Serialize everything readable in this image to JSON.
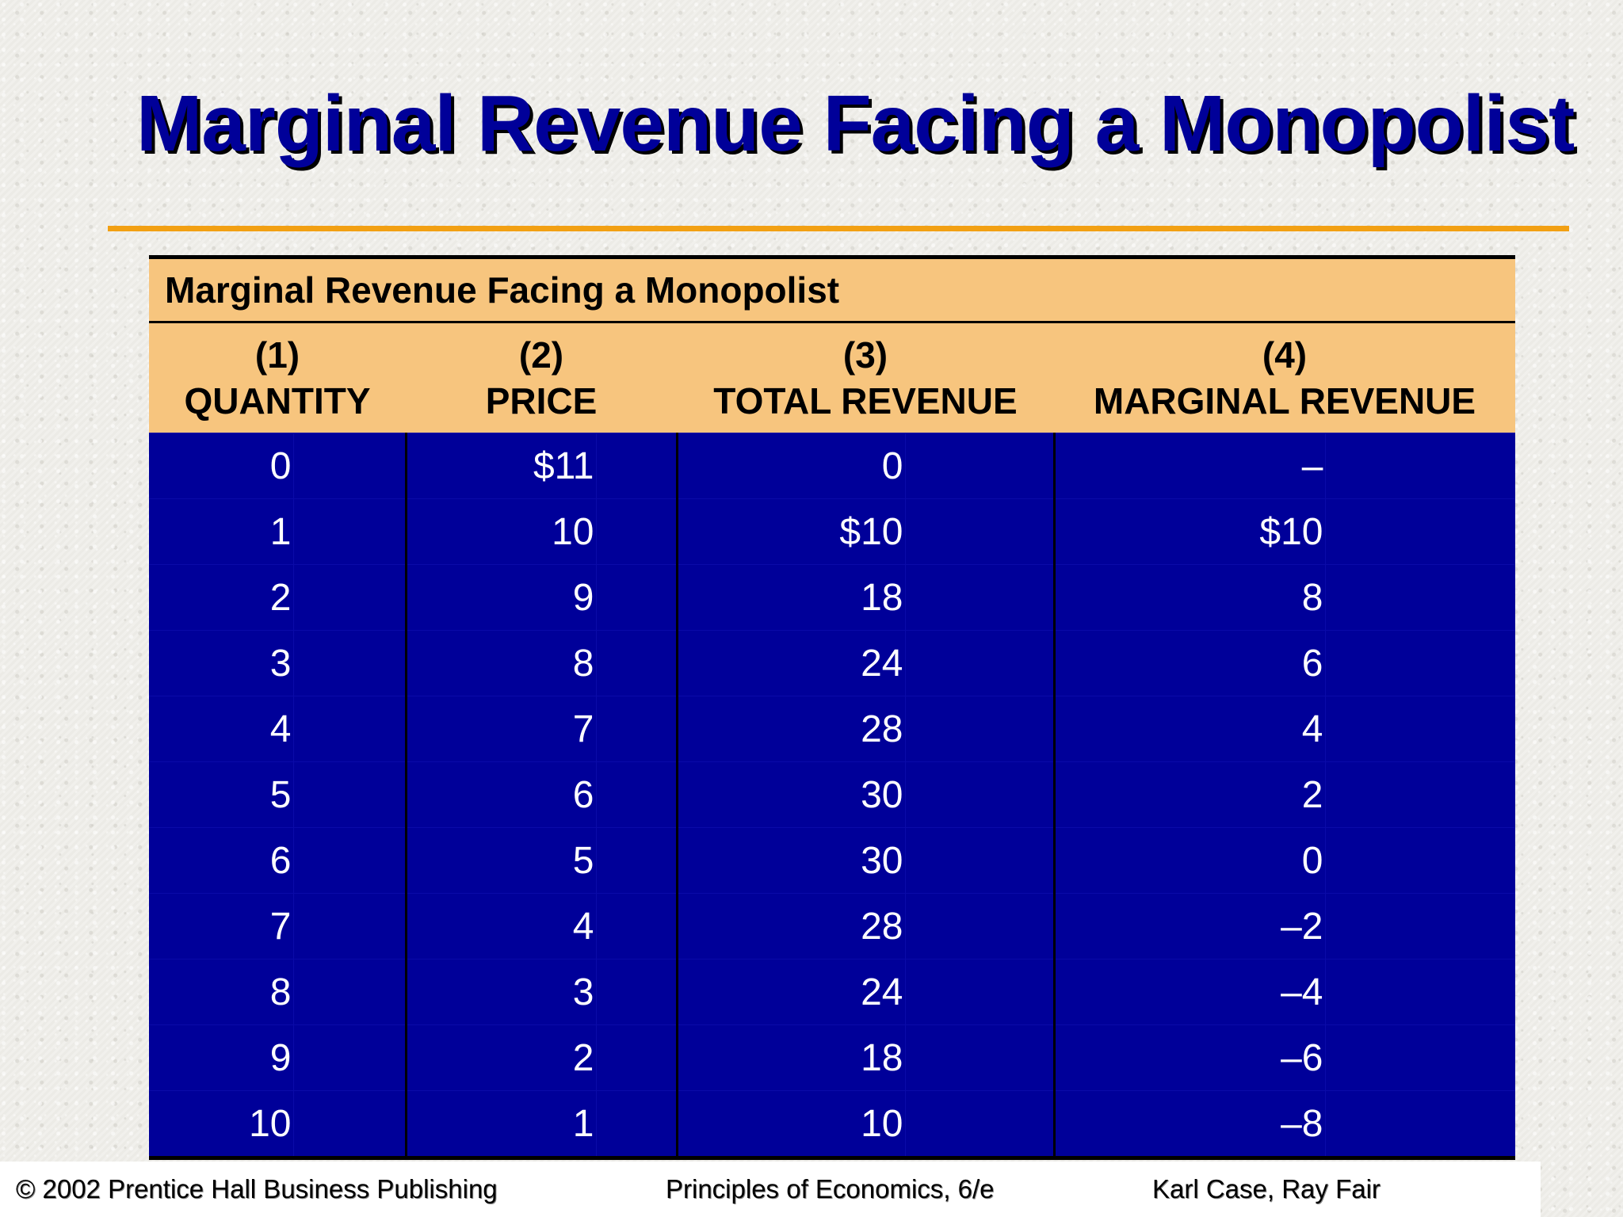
{
  "slide": {
    "title": "Marginal Revenue Facing a Monopolist"
  },
  "table": {
    "caption": "Marginal Revenue Facing a Monopolist",
    "columns": [
      {
        "number": "(1)",
        "label": "QUANTITY"
      },
      {
        "number": "(2)",
        "label": "PRICE"
      },
      {
        "number": "(3)",
        "label": "TOTAL REVENUE"
      },
      {
        "number": "(4)",
        "label": "MARGINAL REVENUE"
      }
    ],
    "rows": [
      [
        "0",
        "$11",
        "0",
        "–"
      ],
      [
        "1",
        "10",
        "$10",
        "$10"
      ],
      [
        "2",
        "9",
        "18",
        "8"
      ],
      [
        "3",
        "8",
        "24",
        "6"
      ],
      [
        "4",
        "7",
        "28",
        "4"
      ],
      [
        "5",
        "6",
        "30",
        "2"
      ],
      [
        "6",
        "5",
        "30",
        "0"
      ],
      [
        "7",
        "4",
        "28",
        "–2"
      ],
      [
        "8",
        "3",
        "24",
        "–4"
      ],
      [
        "9",
        "2",
        "18",
        "–6"
      ],
      [
        "10",
        "1",
        "10",
        "–8"
      ]
    ]
  },
  "footer": {
    "copyright": "© 2002 Prentice Hall Business Publishing",
    "book": "Principles of Economics, 6/e",
    "authors": "Karl Case, Ray Fair"
  },
  "colors": {
    "title": "#000099",
    "rule": "#f2a013",
    "header_bg": "#f7c57e",
    "body_bg": "#000099",
    "body_text": "#ffffff"
  }
}
